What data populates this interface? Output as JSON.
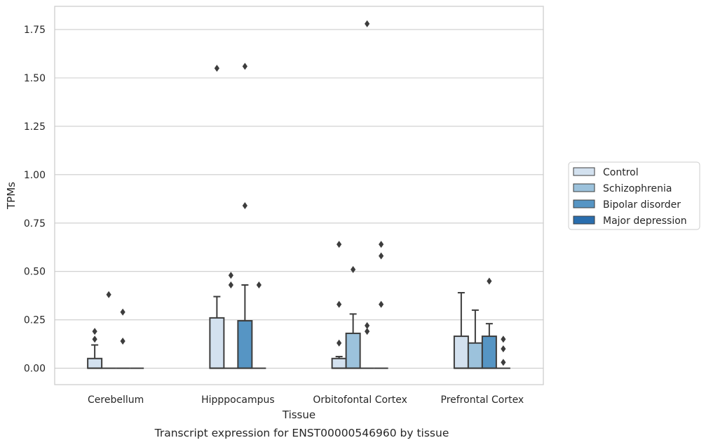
{
  "chart_data": {
    "type": "box",
    "caption": "Transcript expression for ENST00000546960 by tissue",
    "xlabel": "Tissue",
    "ylabel": "TPMs",
    "ylim": [
      -0.085,
      1.87
    ],
    "yticks": [
      0.0,
      0.25,
      0.5,
      0.75,
      1.0,
      1.25,
      1.5,
      1.75
    ],
    "ytick_labels": [
      "0.00",
      "0.25",
      "0.50",
      "0.75",
      "1.00",
      "1.25",
      "1.50",
      "1.75"
    ],
    "grid": "horizontal",
    "legend_position": "right",
    "categories": [
      "Cerebellum",
      "Hipppocampus",
      "Orbitofontal Cortex",
      "Prefrontal Cortex"
    ],
    "series": [
      {
        "name": "Control",
        "color": "#d3e1ef",
        "boxes": [
          {
            "q1": 0.0,
            "median": 0.0,
            "q3": 0.05,
            "whisker_low": 0.0,
            "whisker_high": 0.12,
            "outliers": [
              0.15,
              0.19
            ]
          },
          {
            "q1": 0.0,
            "median": 0.0,
            "q3": 0.26,
            "whisker_low": 0.0,
            "whisker_high": 0.37,
            "outliers": [
              1.55
            ]
          },
          {
            "q1": 0.0,
            "median": 0.0,
            "q3": 0.05,
            "whisker_low": 0.0,
            "whisker_high": 0.06,
            "outliers": [
              0.13,
              0.33,
              0.64
            ]
          },
          {
            "q1": 0.0,
            "median": 0.0,
            "q3": 0.165,
            "whisker_low": 0.0,
            "whisker_high": 0.39,
            "outliers": []
          }
        ]
      },
      {
        "name": "Schizophrenia",
        "color": "#9cc2dc",
        "boxes": [
          {
            "q1": 0.0,
            "median": 0.0,
            "q3": 0.0,
            "whisker_low": 0.0,
            "whisker_high": 0.0,
            "outliers": [
              0.38
            ]
          },
          {
            "q1": 0.0,
            "median": 0.0,
            "q3": 0.0,
            "whisker_low": 0.0,
            "whisker_high": 0.0,
            "outliers": [
              0.43,
              0.48
            ]
          },
          {
            "q1": 0.0,
            "median": 0.0,
            "q3": 0.18,
            "whisker_low": 0.0,
            "whisker_high": 0.28,
            "outliers": [
              0.51
            ]
          },
          {
            "q1": 0.0,
            "median": 0.0,
            "q3": 0.13,
            "whisker_low": 0.0,
            "whisker_high": 0.3,
            "outliers": []
          }
        ]
      },
      {
        "name": "Bipolar disorder",
        "color": "#5695c4",
        "boxes": [
          {
            "q1": 0.0,
            "median": 0.0,
            "q3": 0.0,
            "whisker_low": 0.0,
            "whisker_high": 0.0,
            "outliers": [
              0.14,
              0.29
            ]
          },
          {
            "q1": 0.0,
            "median": 0.0,
            "q3": 0.245,
            "whisker_low": 0.0,
            "whisker_high": 0.43,
            "outliers": [
              0.84,
              1.56
            ]
          },
          {
            "q1": 0.0,
            "median": 0.0,
            "q3": 0.0,
            "whisker_low": 0.0,
            "whisker_high": 0.0,
            "outliers": [
              0.19,
              0.22,
              1.78
            ]
          },
          {
            "q1": 0.0,
            "median": 0.0,
            "q3": 0.165,
            "whisker_low": 0.0,
            "whisker_high": 0.23,
            "outliers": [
              0.45
            ]
          }
        ]
      },
      {
        "name": "Major depression",
        "color": "#2a6eae",
        "boxes": [
          {
            "q1": 0.0,
            "median": 0.0,
            "q3": 0.0,
            "whisker_low": 0.0,
            "whisker_high": 0.0,
            "outliers": []
          },
          {
            "q1": 0.0,
            "median": 0.0,
            "q3": 0.0,
            "whisker_low": 0.0,
            "whisker_high": 0.0,
            "outliers": [
              0.43
            ]
          },
          {
            "q1": 0.0,
            "median": 0.0,
            "q3": 0.0,
            "whisker_low": 0.0,
            "whisker_high": 0.0,
            "outliers": [
              0.33,
              0.58,
              0.64
            ]
          },
          {
            "q1": 0.0,
            "median": 0.0,
            "q3": 0.0,
            "whisker_low": 0.0,
            "whisker_high": 0.0,
            "outliers": [
              0.03,
              0.1,
              0.15
            ]
          }
        ]
      }
    ]
  }
}
